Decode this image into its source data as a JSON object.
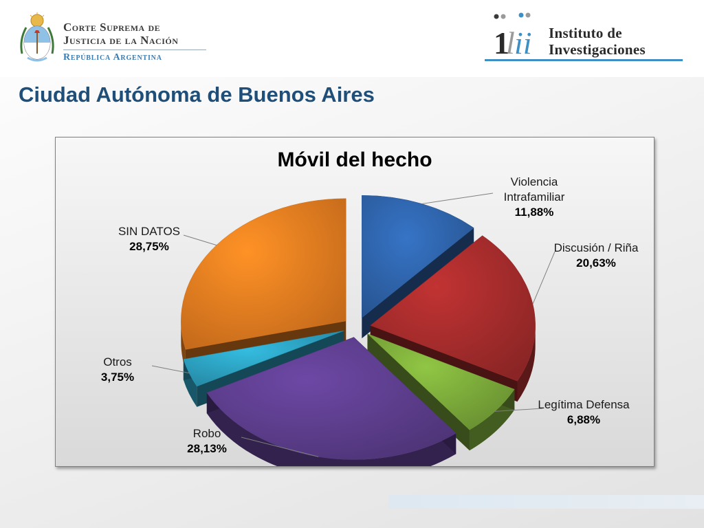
{
  "header": {
    "left_logo": {
      "line1": "Corte Suprema de",
      "line2": "Justicia de la Nación",
      "line3": "República Argentina"
    },
    "right_logo": {
      "line1": "Instituto de",
      "line2": "Investigaciones"
    }
  },
  "slide": {
    "title": "Ciudad Autónoma de Buenos Aires"
  },
  "chart_data": {
    "type": "pie",
    "title": "Móvil del hecho",
    "slices": [
      {
        "label": "Violencia Intrafamiliar",
        "value": 11.88,
        "display": "11,88%",
        "color": "#2e62a8"
      },
      {
        "label": "Discusión / Riña",
        "value": 20.63,
        "display": "20,63%",
        "color": "#a42b2b"
      },
      {
        "label": "Legítima Defensa",
        "value": 6.88,
        "display": "6,88%",
        "color": "#7aa83a"
      },
      {
        "label": "Robo",
        "value": 28.13,
        "display": "28,13%",
        "color": "#5c3d8c"
      },
      {
        "label": "Otros",
        "value": 3.75,
        "display": "3,75%",
        "color": "#2c9fbe"
      },
      {
        "label": "SIN DATOS",
        "value": 28.75,
        "display": "28,75%",
        "color": "#e57c20"
      }
    ],
    "legend": "none",
    "data_labels": "outside"
  }
}
